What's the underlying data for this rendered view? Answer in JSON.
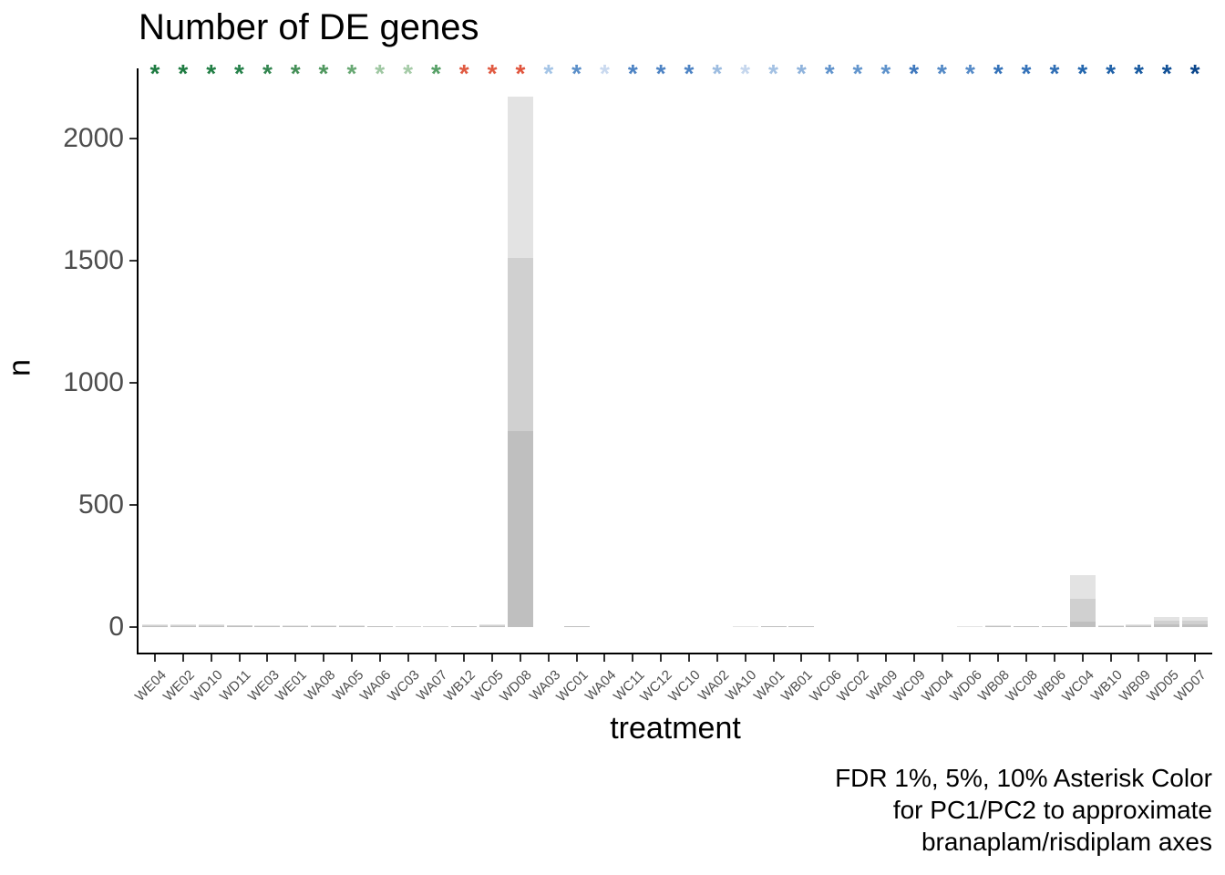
{
  "chart": {
    "title": "Number of DE genes",
    "xlabel": "treatment",
    "ylabel": "n",
    "caption_lines": [
      "FDR 1%, 5%, 10% Asterisk Color",
      "for PC1/PC2 to approximate",
      "branaplam/risdiplam axes"
    ]
  },
  "chart_data": {
    "type": "bar",
    "title": "Number of DE genes",
    "xlabel": "treatment",
    "ylabel": "n",
    "ylim": [
      0,
      2250
    ],
    "yticks": [
      0,
      500,
      1000,
      1500,
      2000
    ],
    "grid": false,
    "legend": "none",
    "note": "Stacked/overlaid gray bars show cumulative DE gene counts at FDR 1% (dark), 5% (medium), 10% (light); colored asterisks above each bar encode PC1/PC2 position approximating branaplam/risdiplam axes",
    "categories": [
      "WE04",
      "WE02",
      "WD10",
      "WD11",
      "WE03",
      "WE01",
      "WA08",
      "WA05",
      "WA06",
      "WC03",
      "WA07",
      "WB12",
      "WC05",
      "WD08",
      "WA03",
      "WC01",
      "WA04",
      "WC11",
      "WC12",
      "WC10",
      "WA02",
      "WA10",
      "WA01",
      "WB01",
      "WC06",
      "WC02",
      "WA09",
      "WC09",
      "WD04",
      "WD06",
      "WB08",
      "WC08",
      "WB06",
      "WC04",
      "WB10",
      "WB09",
      "WD05",
      "WD07"
    ],
    "series": [
      {
        "name": "FDR 1%",
        "color": "#bfbfbf",
        "values": [
          4,
          3,
          4,
          3,
          1,
          1,
          2,
          2,
          1,
          0,
          0,
          1,
          3,
          800,
          0,
          1,
          0,
          0,
          0,
          0,
          0,
          0,
          1,
          1,
          0,
          0,
          0,
          0,
          0,
          0,
          1,
          1,
          1,
          24,
          2,
          3,
          10,
          12
        ]
      },
      {
        "name": "FDR 5%",
        "color": "#d0d0d0",
        "values": [
          9,
          7,
          8,
          6,
          3,
          3,
          5,
          4,
          2,
          1,
          1,
          2,
          6,
          1510,
          0,
          2,
          0,
          0,
          0,
          0,
          0,
          0,
          2,
          2,
          0,
          0,
          0,
          0,
          0,
          0,
          3,
          2,
          3,
          117,
          5,
          7,
          25,
          26
        ]
      },
      {
        "name": "FDR 10%",
        "color": "#e3e3e3",
        "values": [
          13,
          10,
          12,
          9,
          6,
          6,
          9,
          7,
          4,
          2,
          2,
          5,
          10,
          2170,
          0,
          5,
          0,
          0,
          0,
          0,
          0,
          2,
          5,
          5,
          0,
          0,
          0,
          0,
          0,
          2,
          6,
          5,
          5,
          214,
          8,
          12,
          42,
          40
        ]
      }
    ],
    "asterisks": {
      "symbol": "*",
      "colors": [
        "#1e7b41",
        "#1e7b41",
        "#217e44",
        "#26814a",
        "#338650",
        "#448f57",
        "#4f975e",
        "#68a873",
        "#9fc7a2",
        "#a5cba7",
        "#56a066",
        "#e05a41",
        "#e05a41",
        "#e0543c",
        "#a4c4e6",
        "#5b8fc9",
        "#c9d9ef",
        "#4d83c4",
        "#4d83c4",
        "#4d83c4",
        "#9cbce0",
        "#c5d6ed",
        "#a3c1e3",
        "#8fb3dc",
        "#6093cc",
        "#6295cd",
        "#5e92cb",
        "#3d77bd",
        "#5389c6",
        "#568bc8",
        "#3472b9",
        "#3472b9",
        "#2f6eb5",
        "#2467ae",
        "#1f61a8",
        "#185aa0",
        "#115096",
        "#0a458b"
      ]
    },
    "style_colors": {
      "axis_line": "#000000",
      "tick_mark": "#333333",
      "tick_label": "#4d4d4d",
      "asterisk_green_dark": "#1e7b41",
      "asterisk_red": "#e05a41",
      "asterisk_blue_dark": "#0a458b"
    }
  }
}
